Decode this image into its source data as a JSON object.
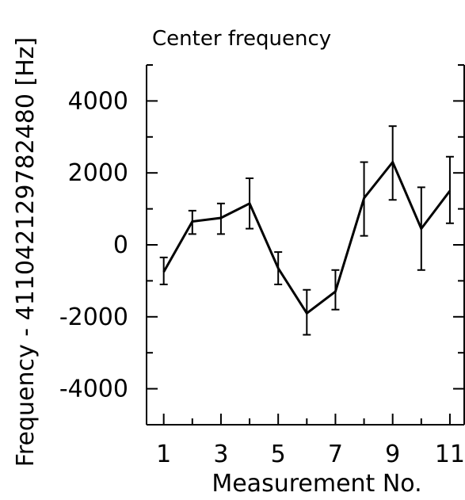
{
  "chart_data": {
    "type": "line",
    "title": "Center frequency",
    "xlabel": "Measurement No.",
    "ylabel": "Frequency - 411042129782480 [Hz]",
    "xlim": [
      0.4,
      11.5
    ],
    "ylim": [
      -5000,
      5000
    ],
    "x_ticks": [
      "1",
      "3",
      "5",
      "7",
      "9",
      "11"
    ],
    "y_ticks": [
      "4000",
      "2000",
      "0",
      "-2000",
      "-4000"
    ],
    "grid": false,
    "series": [
      {
        "x": [
          1,
          2,
          3,
          4,
          5,
          6,
          7,
          8,
          9,
          10,
          11
        ],
        "values": [
          -750,
          650,
          750,
          1150,
          -650,
          -1900,
          -1300,
          1300,
          2300,
          450,
          1500
        ],
        "error_low": [
          -1100,
          300,
          300,
          450,
          -1100,
          -2500,
          -1800,
          250,
          1250,
          -700,
          600
        ],
        "error_high": [
          -350,
          950,
          1150,
          1850,
          -200,
          -1250,
          -700,
          2300,
          3300,
          1600,
          2450
        ]
      }
    ]
  }
}
